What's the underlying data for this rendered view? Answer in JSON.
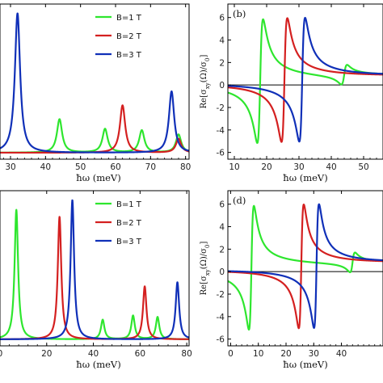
{
  "chart_data": [
    {
      "panel": "top-left",
      "type": "line",
      "xlabel": "ħω (meV)",
      "xlim": [
        27,
        81
      ],
      "x_ticks": [
        30,
        40,
        50,
        60,
        70,
        80
      ],
      "legend": [
        "B=1 T",
        "B=2 T",
        "B=3 T"
      ],
      "legend_placement": "top-right",
      "series": [
        {
          "name": "B=1 T",
          "color": "#2ee62e",
          "peaks": [
            [
              44,
              0.24
            ],
            [
              57,
              0.17
            ],
            [
              67.5,
              0.16
            ],
            [
              78,
              0.13
            ]
          ]
        },
        {
          "name": "B=2 T",
          "color": "#d42020",
          "peaks": [
            [
              62,
              0.34
            ],
            [
              78,
              0.1
            ]
          ]
        },
        {
          "name": "B=3 T",
          "color": "#1030b8",
          "peaks": [
            [
              32,
              1.0
            ],
            [
              76,
              0.44
            ]
          ]
        }
      ]
    },
    {
      "panel": "top-right",
      "label": "(b)",
      "type": "line",
      "xlabel": "ħω (meV)",
      "ylabel": "Re[σxy(Ω)/σ0]",
      "xlim": [
        8,
        56
      ],
      "ylim": [
        -6.6,
        7.2
      ],
      "x_ticks": [
        10,
        20,
        30,
        40,
        50
      ],
      "y_ticks": [
        -6,
        -4,
        -2,
        0,
        2,
        4,
        6
      ],
      "legend_placement": "none",
      "series": [
        {
          "name": "B=1 T",
          "color": "#2ee62e",
          "poles": [
            [
              18,
              1.0
            ],
            [
              44,
              0.16
            ]
          ]
        },
        {
          "name": "B=2 T",
          "color": "#d42020",
          "poles": [
            [
              25.5,
              1.0
            ]
          ]
        },
        {
          "name": "B=3 T",
          "color": "#1030b8",
          "poles": [
            [
              31,
              1.0
            ]
          ]
        }
      ]
    },
    {
      "panel": "bottom-left",
      "type": "line",
      "xlabel": "ħω (meV)",
      "xlim": [
        0,
        81
      ],
      "x_ticks": [
        0,
        20,
        40,
        60,
        80
      ],
      "legend": [
        "B=1 T",
        "B=2 T",
        "B=3 T"
      ],
      "legend_placement": "top-right",
      "series": [
        {
          "name": "B=1 T",
          "color": "#2ee62e",
          "peaks": [
            [
              7,
              0.93
            ],
            [
              44,
              0.14
            ],
            [
              57,
              0.17
            ],
            [
              67.5,
              0.16
            ]
          ]
        },
        {
          "name": "B=2 T",
          "color": "#d42020",
          "peaks": [
            [
              25.5,
              0.88
            ],
            [
              62,
              0.38
            ]
          ]
        },
        {
          "name": "B=3 T",
          "color": "#1030b8",
          "peaks": [
            [
              31,
              1.0
            ],
            [
              76,
              0.41
            ]
          ]
        }
      ]
    },
    {
      "panel": "bottom-right",
      "label": "(d)",
      "type": "line",
      "xlabel": "ħω (meV)",
      "ylabel": "Re[σxy(Ω)/σ0]",
      "xlim": [
        -1,
        55
      ],
      "ylim": [
        -6.6,
        7.2
      ],
      "x_ticks": [
        0,
        10,
        20,
        30,
        40
      ],
      "y_ticks": [
        -6,
        -4,
        -2,
        0,
        2,
        4,
        6
      ],
      "legend_placement": "none",
      "series": [
        {
          "name": "B=1 T",
          "color": "#2ee62e",
          "poles": [
            [
              7.5,
              1.0
            ],
            [
              44,
              0.16
            ]
          ]
        },
        {
          "name": "B=2 T",
          "color": "#d42020",
          "poles": [
            [
              25.5,
              1.0
            ]
          ]
        },
        {
          "name": "B=3 T",
          "color": "#1030b8",
          "poles": [
            [
              31,
              1.0
            ]
          ]
        }
      ]
    }
  ]
}
